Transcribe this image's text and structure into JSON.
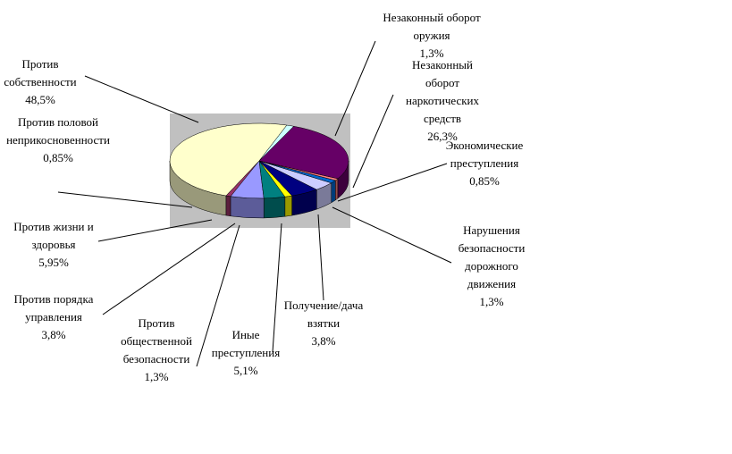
{
  "chart_data": {
    "type": "pie",
    "categories": [
      "Против собственности",
      "Против половой неприкосновенности",
      "Против жизни и здоровья",
      "Против порядка управления",
      "Против общественной безопасности",
      "Иные преступления",
      "Получение/дача взятки",
      "Нарушения безопасности дорожного движения",
      "Экономические преступления",
      "Незаконный оборот наркотических средств",
      "Незаконный оборот оружия"
    ],
    "values": [
      48.5,
      0.85,
      5.95,
      3.8,
      1.3,
      5.1,
      3.8,
      1.3,
      0.85,
      26.3,
      1.3
    ],
    "value_labels": [
      "48,5%",
      "0,85%",
      "5,95%",
      "3,8%",
      "1,3%",
      "5,1%",
      "3,8%",
      "1,3%",
      "0,85%",
      "26,3%",
      "1,3%"
    ],
    "colors": [
      "#ffffcc",
      "#993366",
      "#9999ff",
      "#008080",
      "#ffff00",
      "#000080",
      "#ccccff",
      "#0066cc",
      "#ff8080",
      "#660066",
      "#ccffff"
    ]
  }
}
